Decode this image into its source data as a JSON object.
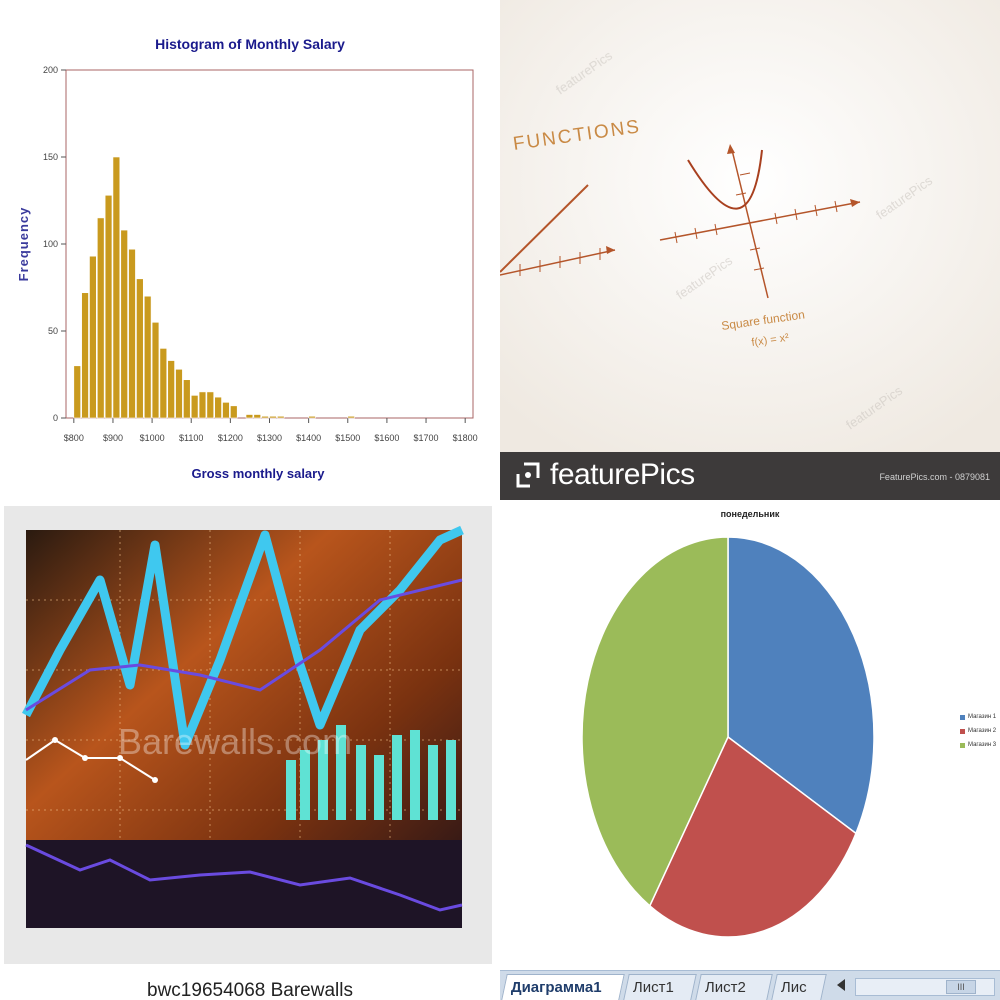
{
  "histogram": {
    "chart_data": {
      "type": "bar",
      "title": "Histogram of Monthly Salary",
      "xlabel": "Gross monthly salary",
      "ylabel": "Frequency",
      "ylim": [
        0,
        200
      ],
      "xlim": [
        780,
        1820
      ],
      "yticks": [
        "0",
        "50",
        "100",
        "150",
        "200"
      ],
      "xticks": [
        "$800",
        "$900",
        "$1000",
        "$1100",
        "$1200",
        "$1300",
        "$1400",
        "$1500",
        "$1600",
        "$1700",
        "$1800"
      ],
      "bin_width": 20,
      "bin_starts": [
        800,
        820,
        840,
        860,
        880,
        900,
        920,
        940,
        960,
        980,
        1000,
        1020,
        1040,
        1060,
        1080,
        1100,
        1120,
        1140,
        1160,
        1180,
        1200,
        1220,
        1240,
        1260,
        1280,
        1300,
        1320,
        1340,
        1360,
        1380,
        1400,
        1420,
        1440,
        1460,
        1480,
        1500,
        1520
      ],
      "values": [
        30,
        72,
        93,
        115,
        128,
        150,
        108,
        97,
        80,
        70,
        55,
        40,
        33,
        28,
        22,
        13,
        15,
        15,
        12,
        9,
        7,
        0,
        2,
        2,
        1,
        1,
        1,
        0,
        0,
        0,
        1,
        0,
        0,
        0,
        0,
        1,
        0
      ],
      "bar_color": "#c99a1e"
    }
  },
  "functions_photo": {
    "heading": "FUNCTIONS",
    "caption_line1": "Square function",
    "caption_line2": "f(x) = x²",
    "watermark": "featurePics",
    "brand": "featurePics",
    "brand_small": "FeaturePics.com - 0879081"
  },
  "finance_photo": {
    "watermark": "Barewalls.com",
    "caption": "bwc19654068 Barewalls"
  },
  "pie": {
    "chart_data": {
      "type": "pie",
      "title": "понедельник",
      "labels": [
        "Магазин 1",
        "Магазин 2",
        "Магазин 3"
      ],
      "values": [
        33,
        26,
        41
      ],
      "colors": [
        "#4f81bd",
        "#c0504d",
        "#9bbb59"
      ],
      "legend_position": "right"
    },
    "tabs": [
      "Диаграмма1",
      "Лист1",
      "Лист2",
      "Лис"
    ],
    "scroll_thumb": "III"
  }
}
